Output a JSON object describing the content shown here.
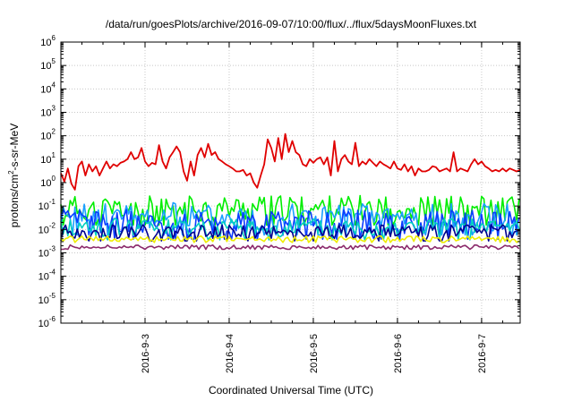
{
  "chart_data": {
    "type": "line",
    "title": "/data/run/goesPlots/archive/2016-09-07/10:00/flux/../flux/5daysMoonFluxes.txt",
    "xlabel": "Coordinated Universal Time (UTC)",
    "ylabel": {
      "base": "protons/cm",
      "sup": "2",
      "rest": "-s-sr-MeV"
    },
    "yscale": "log",
    "ylim": [
      1e-06,
      1000000.0
    ],
    "xlim": [
      "2016-09-02T00:00",
      "2016-09-07T11:00"
    ],
    "grid": true,
    "yticks": [
      {
        "value": 1e-06,
        "base": "10",
        "exp": "-6"
      },
      {
        "value": 1e-05,
        "base": "10",
        "exp": "-5"
      },
      {
        "value": 0.0001,
        "base": "10",
        "exp": "-4"
      },
      {
        "value": 0.001,
        "base": "10",
        "exp": "-3"
      },
      {
        "value": 0.01,
        "base": "10",
        "exp": "-2"
      },
      {
        "value": 0.1,
        "base": "10",
        "exp": "-1"
      },
      {
        "value": 1,
        "base": "10",
        "exp": "0"
      },
      {
        "value": 10,
        "base": "10",
        "exp": "1"
      },
      {
        "value": 100,
        "base": "10",
        "exp": "2"
      },
      {
        "value": 1000,
        "base": "10",
        "exp": "3"
      },
      {
        "value": 10000,
        "base": "10",
        "exp": "4"
      },
      {
        "value": 100000,
        "base": "10",
        "exp": "5"
      },
      {
        "value": 1000000,
        "base": "10",
        "exp": "6"
      }
    ],
    "xticks": [
      {
        "value": "2016-09-03T00:00",
        "label": "2016-9-3"
      },
      {
        "value": "2016-09-04T00:00",
        "label": "2016-9-4"
      },
      {
        "value": "2016-09-05T00:00",
        "label": "2016-9-5"
      },
      {
        "value": "2016-09-06T00:00",
        "label": "2016-9-6"
      },
      {
        "value": "2016-09-07T00:00",
        "label": "2016-9-7"
      }
    ],
    "series": [
      {
        "color": "#e00000",
        "points": [
          [
            "2016-09-02T00:00",
            2.5
          ],
          [
            "2016-09-02T01:00",
            1.1
          ],
          [
            "2016-09-02T02:00",
            4.0
          ],
          [
            "2016-09-02T03:00",
            0.9
          ],
          [
            "2016-09-02T04:00",
            0.5
          ],
          [
            "2016-09-02T05:00",
            5.0
          ],
          [
            "2016-09-02T06:00",
            8.0
          ],
          [
            "2016-09-02T07:00",
            2.0
          ],
          [
            "2016-09-02T08:00",
            6.0
          ],
          [
            "2016-09-02T09:00",
            3.0
          ],
          [
            "2016-09-02T10:00",
            5.0
          ],
          [
            "2016-09-02T11:00",
            2.0
          ],
          [
            "2016-09-02T12:00",
            4.0
          ],
          [
            "2016-09-02T13:00",
            8.0
          ],
          [
            "2016-09-02T14:00",
            4.0
          ],
          [
            "2016-09-02T15:00",
            6.0
          ],
          [
            "2016-09-02T16:00",
            5.0
          ],
          [
            "2016-09-02T17:00",
            7.0
          ],
          [
            "2016-09-02T18:00",
            8.0
          ],
          [
            "2016-09-02T19:00",
            10.0
          ],
          [
            "2016-09-02T20:00",
            20.0
          ],
          [
            "2016-09-02T21:00",
            10.0
          ],
          [
            "2016-09-02T22:00",
            12.0
          ],
          [
            "2016-09-02T23:00",
            30.0
          ],
          [
            "2016-09-03T00:00",
            8.0
          ],
          [
            "2016-09-03T01:00",
            5.0
          ],
          [
            "2016-09-03T02:00",
            7.0
          ],
          [
            "2016-09-03T03:00",
            6.0
          ],
          [
            "2016-09-03T04:00",
            40.0
          ],
          [
            "2016-09-03T05:00",
            8.0
          ],
          [
            "2016-09-03T06:00",
            4.0
          ],
          [
            "2016-09-03T07:00",
            12.0
          ],
          [
            "2016-09-03T08:00",
            20.0
          ],
          [
            "2016-09-03T09:00",
            35.0
          ],
          [
            "2016-09-03T10:00",
            20.0
          ],
          [
            "2016-09-03T11:00",
            3.0
          ],
          [
            "2016-09-03T12:00",
            1.2
          ],
          [
            "2016-09-03T13:00",
            8.0
          ],
          [
            "2016-09-03T14:00",
            2.0
          ],
          [
            "2016-09-03T15:00",
            15.0
          ],
          [
            "2016-09-03T16:00",
            30.0
          ],
          [
            "2016-09-03T17:00",
            12.0
          ],
          [
            "2016-09-03T18:00",
            45.0
          ],
          [
            "2016-09-03T19:00",
            15.0
          ],
          [
            "2016-09-03T20:00",
            20.0
          ],
          [
            "2016-09-03T21:00",
            10.0
          ],
          [
            "2016-09-03T22:00",
            8.0
          ],
          [
            "2016-09-03T23:00",
            6.0
          ],
          [
            "2016-09-04T00:00",
            5.0
          ],
          [
            "2016-09-04T01:00",
            4.0
          ],
          [
            "2016-09-04T02:00",
            3.0
          ],
          [
            "2016-09-04T03:00",
            3.0
          ],
          [
            "2016-09-04T04:00",
            3.5
          ],
          [
            "2016-09-04T05:00",
            2.0
          ],
          [
            "2016-09-04T06:00",
            2.5
          ],
          [
            "2016-09-04T07:00",
            1.0
          ],
          [
            "2016-09-04T08:00",
            0.6
          ],
          [
            "2016-09-04T09:00",
            2.0
          ],
          [
            "2016-09-04T10:00",
            6.0
          ],
          [
            "2016-09-04T11:00",
            70.0
          ],
          [
            "2016-09-04T12:00",
            30.0
          ],
          [
            "2016-09-04T13:00",
            8.0
          ],
          [
            "2016-09-04T14:00",
            80.0
          ],
          [
            "2016-09-04T15:00",
            10.0
          ],
          [
            "2016-09-04T16:00",
            120.0
          ],
          [
            "2016-09-04T17:00",
            20.0
          ],
          [
            "2016-09-04T18:00",
            60.0
          ],
          [
            "2016-09-04T19:00",
            20.0
          ],
          [
            "2016-09-04T20:00",
            15.0
          ],
          [
            "2016-09-04T21:00",
            6.0
          ],
          [
            "2016-09-04T22:00",
            5.0
          ],
          [
            "2016-09-04T23:00",
            10.0
          ],
          [
            "2016-09-05T00:00",
            7.0
          ],
          [
            "2016-09-05T01:00",
            10.0
          ],
          [
            "2016-09-05T02:00",
            12.0
          ],
          [
            "2016-09-05T03:00",
            6.0
          ],
          [
            "2016-09-05T04:00",
            12.0
          ],
          [
            "2016-09-05T05:00",
            2.0
          ],
          [
            "2016-09-05T06:00",
            60.0
          ],
          [
            "2016-09-05T07:00",
            3.0
          ],
          [
            "2016-09-05T08:00",
            10.0
          ],
          [
            "2016-09-05T09:00",
            15.0
          ],
          [
            "2016-09-05T10:00",
            8.0
          ],
          [
            "2016-09-05T11:00",
            6.0
          ],
          [
            "2016-09-05T12:00",
            50.0
          ],
          [
            "2016-09-05T13:00",
            5.0
          ],
          [
            "2016-09-05T14:00",
            8.0
          ],
          [
            "2016-09-05T15:00",
            6.0
          ],
          [
            "2016-09-05T16:00",
            10.0
          ],
          [
            "2016-09-05T17:00",
            7.0
          ],
          [
            "2016-09-05T18:00",
            5.0
          ],
          [
            "2016-09-05T19:00",
            8.0
          ],
          [
            "2016-09-05T20:00",
            6.0
          ],
          [
            "2016-09-05T21:00",
            5.0
          ],
          [
            "2016-09-05T22:00",
            4.0
          ],
          [
            "2016-09-05T23:00",
            8.0
          ],
          [
            "2016-09-06T00:00",
            4.0
          ],
          [
            "2016-09-06T01:00",
            3.5
          ],
          [
            "2016-09-06T02:00",
            6.0
          ],
          [
            "2016-09-06T03:00",
            3.0
          ],
          [
            "2016-09-06T04:00",
            5.0
          ],
          [
            "2016-09-06T05:00",
            2.0
          ],
          [
            "2016-09-06T06:00",
            4.0
          ],
          [
            "2016-09-06T07:00",
            3.0
          ],
          [
            "2016-09-06T08:00",
            3.0
          ],
          [
            "2016-09-06T09:00",
            3.5
          ],
          [
            "2016-09-06T10:00",
            5.0
          ],
          [
            "2016-09-06T11:00",
            4.5
          ],
          [
            "2016-09-06T12:00",
            3.0
          ],
          [
            "2016-09-06T13:00",
            3.5
          ],
          [
            "2016-09-06T14:00",
            4.0
          ],
          [
            "2016-09-06T15:00",
            3.0
          ],
          [
            "2016-09-06T16:00",
            20.0
          ],
          [
            "2016-09-06T17:00",
            3.0
          ],
          [
            "2016-09-06T18:00",
            4.0
          ],
          [
            "2016-09-06T19:00",
            3.5
          ],
          [
            "2016-09-06T20:00",
            3.0
          ],
          [
            "2016-09-06T21:00",
            6.0
          ],
          [
            "2016-09-06T22:00",
            10.0
          ],
          [
            "2016-09-06T23:00",
            6.0
          ],
          [
            "2016-09-07T00:00",
            8.0
          ],
          [
            "2016-09-07T01:00",
            5.0
          ],
          [
            "2016-09-07T02:00",
            4.0
          ],
          [
            "2016-09-07T03:00",
            3.0
          ],
          [
            "2016-09-07T04:00",
            3.5
          ],
          [
            "2016-09-07T05:00",
            3.0
          ],
          [
            "2016-09-07T06:00",
            4.0
          ],
          [
            "2016-09-07T07:00",
            3.0
          ],
          [
            "2016-09-07T08:00",
            4.0
          ],
          [
            "2016-09-07T09:00",
            3.5
          ],
          [
            "2016-09-07T10:00",
            3.0
          ],
          [
            "2016-09-07T11:00",
            3.5
          ]
        ]
      },
      {
        "color": "#00ee00",
        "base": 0.08,
        "amp": 0.55,
        "seed": 11
      },
      {
        "color": "#1ba0ff",
        "base": 0.035,
        "amp": 0.6,
        "seed": 23
      },
      {
        "color": "#0a3cff",
        "base": 0.02,
        "amp": 0.55,
        "seed": 37
      },
      {
        "color": "#00d0c0",
        "base": 0.012,
        "amp": 0.4,
        "seed": 41
      },
      {
        "color": "#000090",
        "base": 0.008,
        "amp": 0.3,
        "seed": 53
      },
      {
        "color": "#eeee00",
        "base": 0.004,
        "amp": 0.12,
        "seed": 61
      },
      {
        "color": "#8b2a6b",
        "base": 0.0018,
        "amp": 0.08,
        "seed": 71
      }
    ]
  }
}
